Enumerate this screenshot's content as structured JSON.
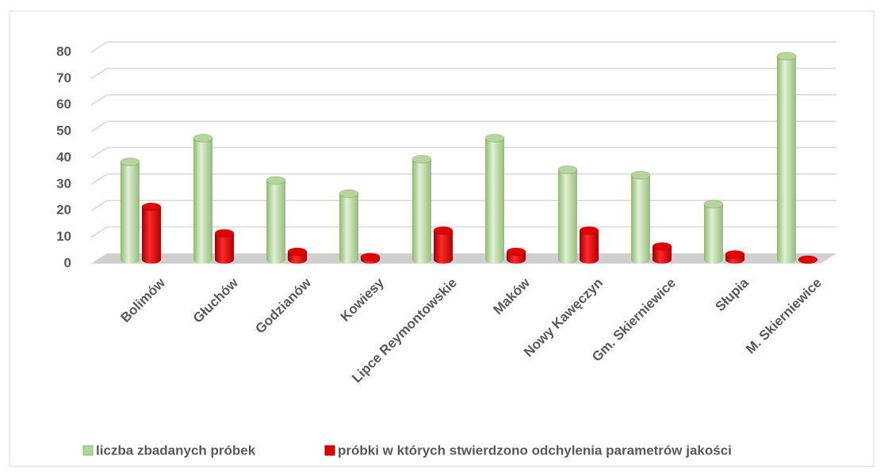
{
  "chart_data": {
    "type": "bar",
    "categories": [
      "Bolimów",
      "Głuchów",
      "Godzianów",
      "Kowiesy",
      "Lipce Reymontowskie",
      "Maków",
      "Nowy Kawęczyn",
      "Gm. Skierniewice",
      "Słupia",
      "M. Skierniewice"
    ],
    "series": [
      {
        "name": "liczba zbadanych próbek",
        "color": "#b5d69a",
        "values": [
          37,
          46,
          30,
          25,
          38,
          46,
          34,
          32,
          21,
          77
        ]
      },
      {
        "name": "próbki w których stwierdzono odchylenia parametrów jakości",
        "color": "#e00000",
        "values": [
          20,
          10,
          3,
          1,
          11,
          3,
          11,
          5,
          2,
          0
        ]
      }
    ],
    "ylim": [
      0,
      80
    ],
    "yticks": [
      0,
      10,
      20,
      30,
      40,
      50,
      60,
      70,
      80
    ],
    "grid": true
  }
}
